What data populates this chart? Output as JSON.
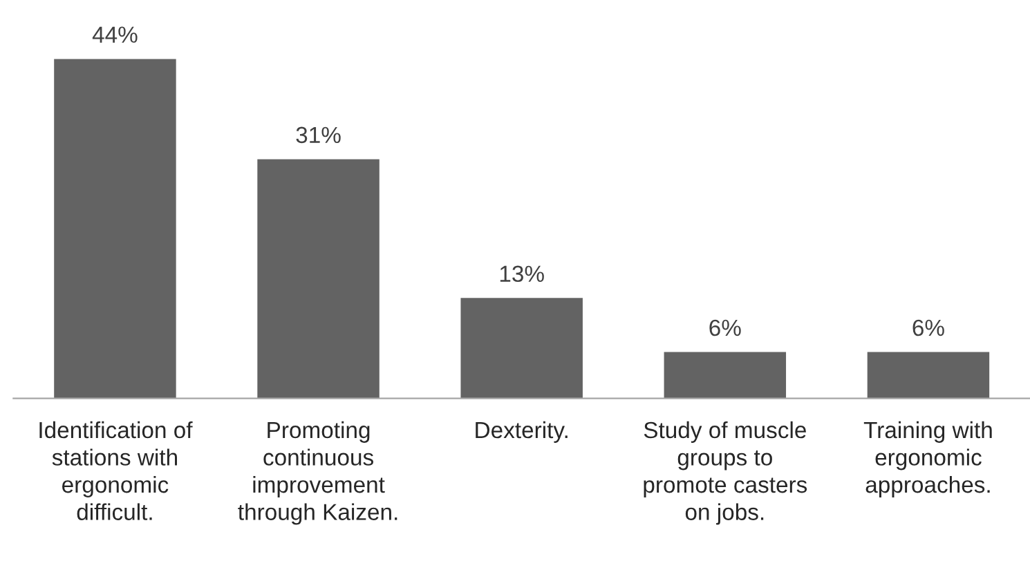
{
  "chart_data": {
    "type": "bar",
    "categories": [
      "Identification of\nstations with\nergonomic\ndifficult.",
      "Promoting\ncontinuous\nimprovement\nthrough Kaizen.",
      "Dexterity.",
      "Study of muscle\ngroups to\npromote casters\non jobs.",
      "Training with\nergonomic\napproaches."
    ],
    "values": [
      44,
      31,
      13,
      6,
      6
    ],
    "value_labels": [
      "44%",
      "31%",
      "13%",
      "6%",
      "6%"
    ],
    "color": "#636363",
    "grid": false,
    "legend": false
  }
}
